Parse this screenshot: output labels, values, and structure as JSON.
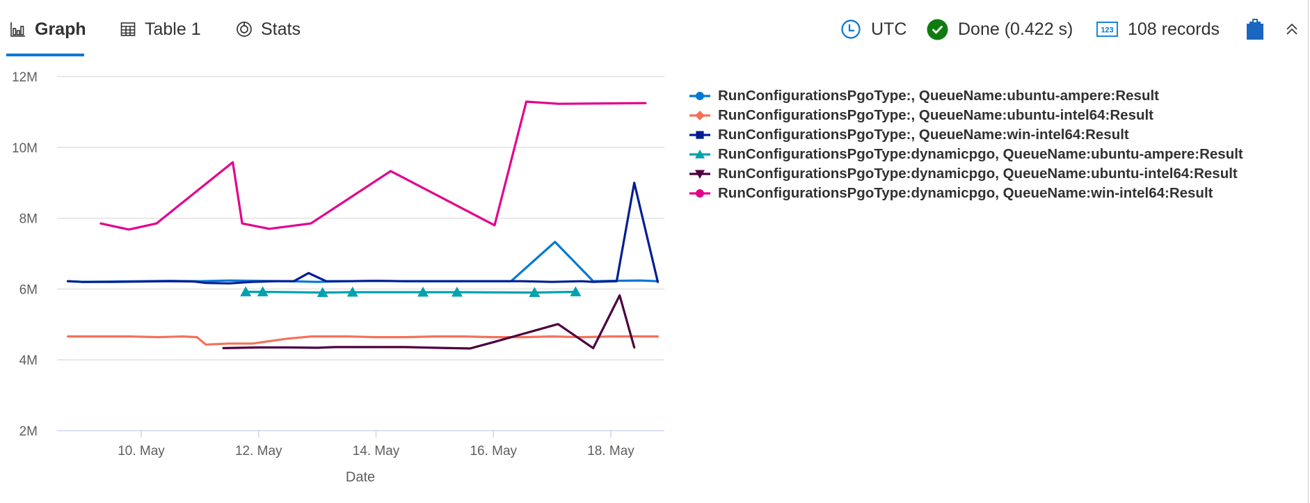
{
  "tabs": [
    {
      "label": "Graph",
      "icon": "bar-chart-icon",
      "active": true
    },
    {
      "label": "Table 1",
      "icon": "table-icon",
      "active": false
    },
    {
      "label": "Stats",
      "icon": "donut-chart-icon",
      "active": false
    }
  ],
  "status": {
    "timezone": "UTC",
    "query_status": "Done (0.422 s)",
    "records": "108 records",
    "colors": {
      "accent": "#0078d4",
      "done_green": "#107c10",
      "clipboard": "#1a66c0"
    }
  },
  "chart_data": {
    "type": "line",
    "title": "",
    "xlabel": "Date",
    "ylabel": "",
    "x_ticks": [
      "10. May",
      "12. May",
      "14. May",
      "16. May",
      "18. May"
    ],
    "x_tick_days": [
      10,
      12,
      14,
      16,
      18
    ],
    "y_ticks": [
      "2M",
      "4M",
      "6M",
      "8M",
      "10M",
      "12M"
    ],
    "y_tick_values": [
      2,
      4,
      6,
      8,
      10,
      12
    ],
    "ylim": [
      2,
      12
    ],
    "xlim_days": [
      8.7,
      18.9
    ],
    "units": "values in millions; x in day of May",
    "grid": true,
    "legend_position": "right",
    "series": [
      {
        "name": "RunConfigurationsPgoType:, QueueName:ubuntu-ampere:Result",
        "color": "#0078d4",
        "marker": "circle",
        "points": [
          [
            8.75,
            6.22
          ],
          [
            9.0,
            6.2
          ],
          [
            9.5,
            6.21
          ],
          [
            10.0,
            6.22
          ],
          [
            10.5,
            6.23
          ],
          [
            11.0,
            6.22
          ],
          [
            11.5,
            6.24
          ],
          [
            12.0,
            6.23
          ],
          [
            12.5,
            6.22
          ],
          [
            13.0,
            6.2
          ],
          [
            13.5,
            6.22
          ],
          [
            14.0,
            6.23
          ],
          [
            14.5,
            6.22
          ],
          [
            15.0,
            6.22
          ],
          [
            15.5,
            6.22
          ],
          [
            16.0,
            6.22
          ],
          [
            16.3,
            6.22
          ],
          [
            17.05,
            7.33
          ],
          [
            17.7,
            6.22
          ],
          [
            18.0,
            6.23
          ],
          [
            18.5,
            6.24
          ],
          [
            18.8,
            6.22
          ]
        ]
      },
      {
        "name": "RunConfigurationsPgoType:, QueueName:ubuntu-intel64:Result",
        "color": "#f4715a",
        "marker": "diamond",
        "points": [
          [
            8.75,
            4.66
          ],
          [
            9.3,
            4.66
          ],
          [
            9.8,
            4.66
          ],
          [
            10.3,
            4.64
          ],
          [
            10.7,
            4.66
          ],
          [
            10.95,
            4.64
          ],
          [
            11.1,
            4.43
          ],
          [
            11.5,
            4.46
          ],
          [
            11.9,
            4.46
          ],
          [
            12.2,
            4.53
          ],
          [
            12.5,
            4.6
          ],
          [
            12.9,
            4.66
          ],
          [
            13.5,
            4.66
          ],
          [
            14.0,
            4.64
          ],
          [
            14.5,
            4.64
          ],
          [
            15.0,
            4.66
          ],
          [
            15.5,
            4.66
          ],
          [
            16.0,
            4.64
          ],
          [
            16.5,
            4.64
          ],
          [
            17.0,
            4.66
          ],
          [
            17.5,
            4.64
          ],
          [
            18.0,
            4.66
          ],
          [
            18.8,
            4.66
          ]
        ]
      },
      {
        "name": "RunConfigurationsPgoType:, QueueName:win-intel64:Result",
        "color": "#001d94",
        "marker": "square",
        "points": [
          [
            8.75,
            6.22
          ],
          [
            9.0,
            6.2
          ],
          [
            9.5,
            6.2
          ],
          [
            10.0,
            6.21
          ],
          [
            10.5,
            6.22
          ],
          [
            10.9,
            6.21
          ],
          [
            11.1,
            6.17
          ],
          [
            11.5,
            6.16
          ],
          [
            11.9,
            6.2
          ],
          [
            12.3,
            6.22
          ],
          [
            12.6,
            6.22
          ],
          [
            12.85,
            6.45
          ],
          [
            13.15,
            6.22
          ],
          [
            13.5,
            6.22
          ],
          [
            14.0,
            6.23
          ],
          [
            14.5,
            6.22
          ],
          [
            15.0,
            6.22
          ],
          [
            15.5,
            6.22
          ],
          [
            16.0,
            6.22
          ],
          [
            16.5,
            6.22
          ],
          [
            17.0,
            6.2
          ],
          [
            17.5,
            6.22
          ],
          [
            17.7,
            6.2
          ],
          [
            18.1,
            6.22
          ],
          [
            18.4,
            9.0
          ],
          [
            18.8,
            6.2
          ]
        ]
      },
      {
        "name": "RunConfigurationsPgoType:dynamicpgo, QueueName:ubuntu-ampere:Result",
        "color": "#00a2ad",
        "marker": "triangle",
        "points": [
          [
            11.78,
            5.92
          ],
          [
            12.07,
            5.92
          ],
          [
            13.09,
            5.9
          ],
          [
            13.6,
            5.91
          ],
          [
            14.8,
            5.91
          ],
          [
            15.38,
            5.91
          ],
          [
            16.7,
            5.9
          ],
          [
            17.4,
            5.92
          ]
        ]
      },
      {
        "name": "RunConfigurationsPgoType:dynamicpgo, QueueName:ubuntu-intel64:Result",
        "color": "#4b003f",
        "marker": "triangle-down",
        "points": [
          [
            11.4,
            4.33
          ],
          [
            12.0,
            4.35
          ],
          [
            12.5,
            4.35
          ],
          [
            13.0,
            4.34
          ],
          [
            13.3,
            4.36
          ],
          [
            14.0,
            4.36
          ],
          [
            14.5,
            4.36
          ],
          [
            15.0,
            4.34
          ],
          [
            15.6,
            4.32
          ],
          [
            16.0,
            4.5
          ],
          [
            16.5,
            4.73
          ],
          [
            17.1,
            5.01
          ],
          [
            17.7,
            4.33
          ],
          [
            18.15,
            5.82
          ],
          [
            18.4,
            4.35
          ]
        ]
      },
      {
        "name": "RunConfigurationsPgoType:dynamicpgo, QueueName:win-intel64:Result",
        "color": "#e3008c",
        "marker": "circle",
        "points": [
          [
            9.31,
            7.85
          ],
          [
            9.79,
            7.68
          ],
          [
            10.26,
            7.85
          ],
          [
            11.56,
            9.58
          ],
          [
            11.72,
            7.85
          ],
          [
            12.18,
            7.7
          ],
          [
            12.89,
            7.85
          ],
          [
            14.25,
            9.33
          ],
          [
            16.02,
            7.8
          ],
          [
            16.56,
            11.29
          ],
          [
            17.11,
            11.23
          ],
          [
            18.59,
            11.25
          ]
        ]
      }
    ]
  }
}
